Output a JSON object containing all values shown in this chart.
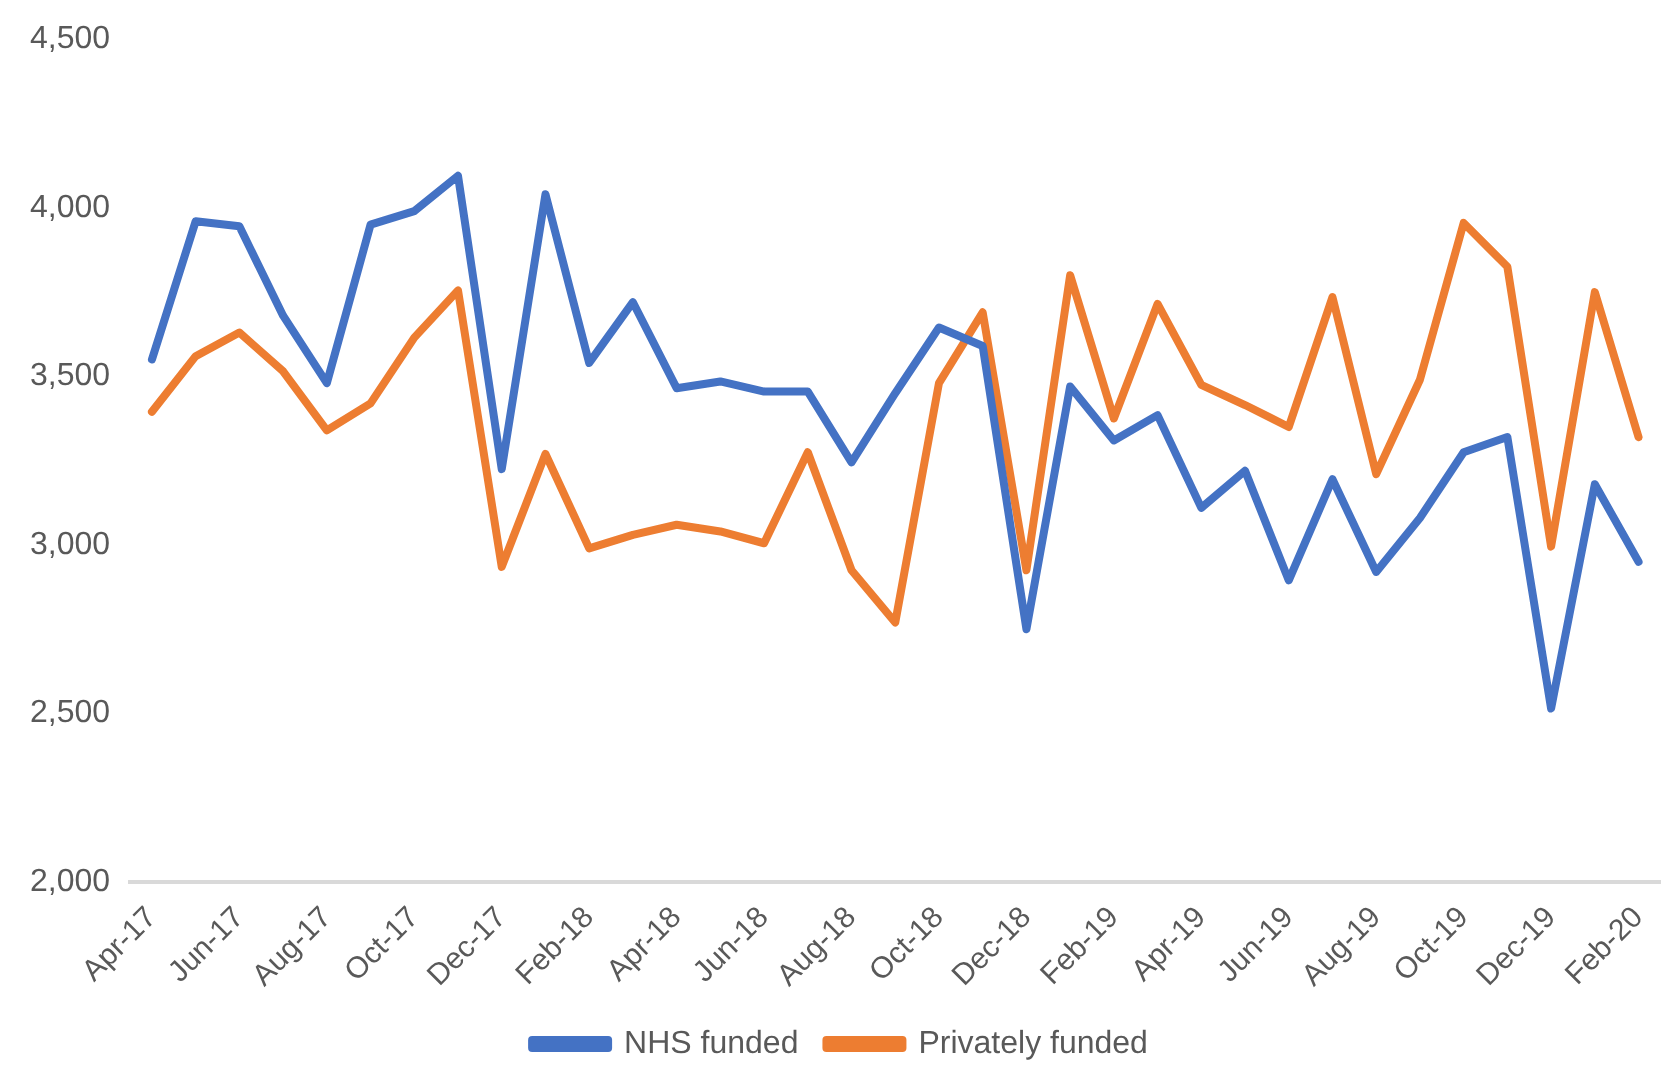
{
  "chart_data": {
    "type": "line",
    "categories": [
      "Apr-17",
      null,
      "Jun-17",
      null,
      "Aug-17",
      null,
      "Oct-17",
      null,
      "Dec-17",
      null,
      "Feb-18",
      null,
      "Apr-18",
      null,
      "Jun-18",
      null,
      "Aug-18",
      null,
      "Oct-18",
      null,
      "Dec-18",
      null,
      "Feb-19",
      null,
      "Apr-19",
      null,
      "Jun-19",
      null,
      "Aug-19",
      null,
      "Oct-19",
      null,
      "Dec-19",
      null,
      "Feb-20"
    ],
    "series": [
      {
        "name": "NHS funded",
        "color": "#4472c4",
        "values": [
          3550,
          3960,
          3945,
          3680,
          3480,
          3950,
          3990,
          4095,
          3225,
          4040,
          3540,
          3720,
          3465,
          3485,
          3455,
          3455,
          3245,
          3450,
          3645,
          3590,
          2750,
          3470,
          3310,
          3385,
          3110,
          3220,
          2895,
          3195,
          2920,
          3080,
          3275,
          3320,
          2515,
          3180,
          2950
        ]
      },
      {
        "name": "Privately funded",
        "color": "#ed7d31",
        "values": [
          3395,
          3560,
          3630,
          3515,
          3340,
          3420,
          3615,
          3755,
          2935,
          3270,
          2990,
          3030,
          3060,
          3040,
          3005,
          3275,
          2925,
          2770,
          3480,
          3690,
          2925,
          3800,
          3375,
          3715,
          3475,
          3415,
          3350,
          3735,
          3210,
          3490,
          3955,
          3825,
          2995,
          3750,
          3320
        ]
      }
    ],
    "ylim": [
      2000,
      4500
    ],
    "yticks": [
      {
        "value": 2000,
        "label": "2,000"
      },
      {
        "value": 2500,
        "label": "2,500"
      },
      {
        "value": 3000,
        "label": "3,000"
      },
      {
        "value": 3500,
        "label": "3,500"
      },
      {
        "value": 4000,
        "label": "4,000"
      },
      {
        "value": 4500,
        "label": "4,500"
      }
    ],
    "grid": false,
    "legend": "bottom",
    "marker": "none",
    "line_style": "solid"
  }
}
